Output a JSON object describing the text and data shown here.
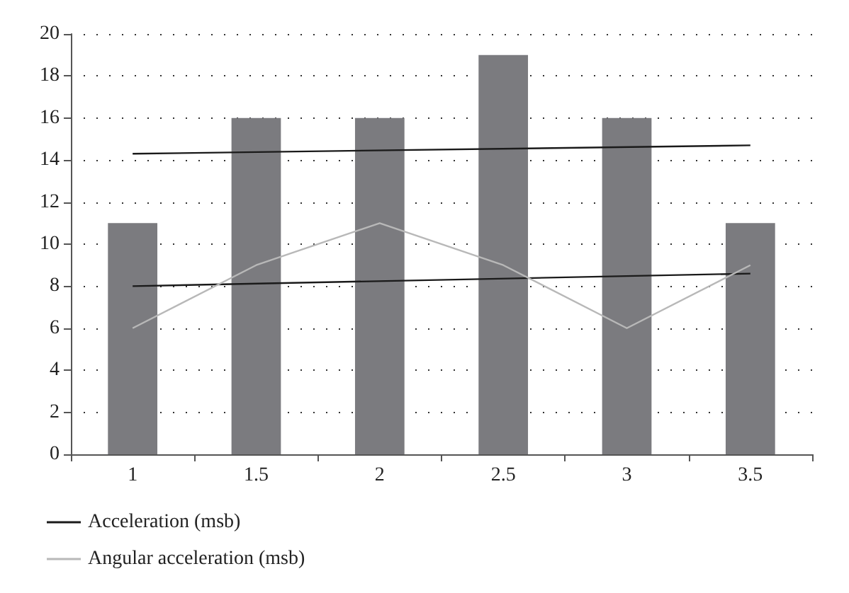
{
  "chart_data": {
    "type": "bar",
    "categories": [
      "1",
      "1.5",
      "2",
      "2.5",
      "3",
      "3.5"
    ],
    "series": [
      {
        "color": "#7b7b7f",
        "values": [
          11,
          16,
          16,
          19,
          16,
          11
        ]
      },
      {
        "type": "line",
        "name": "Acceleration (msb)",
        "color": "#1a1a1a",
        "x": [
          "1",
          "3.5"
        ],
        "values": [
          14.3,
          14.7
        ]
      },
      {
        "type": "line",
        "color": "#1a1a1a",
        "x": [
          "1",
          "3.5"
        ],
        "values": [
          8.0,
          8.6
        ]
      },
      {
        "type": "line",
        "name": "Angular acceleration (msb)",
        "color": "#b8b8b8",
        "values": [
          6,
          9,
          11,
          9,
          6,
          9
        ]
      }
    ],
    "ylim": [
      0,
      20
    ],
    "yticks": [
      0,
      2,
      4,
      6,
      8,
      10,
      12,
      14,
      16,
      18,
      20
    ],
    "grid": "y",
    "legend": "bottom left",
    "marker": "none"
  }
}
